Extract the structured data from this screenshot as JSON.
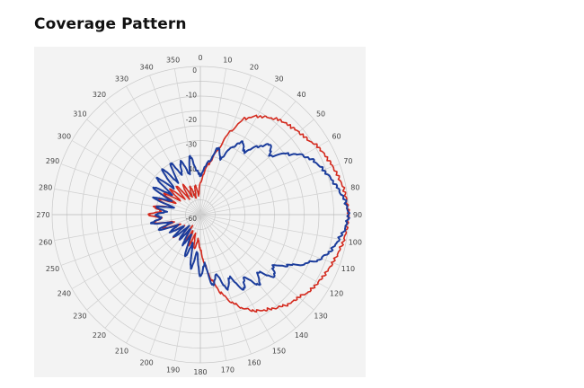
{
  "page": {
    "title": "Coverage Pattern"
  },
  "chart_data": {
    "type": "polar",
    "title": "Coverage Pattern",
    "angle_unit": "degrees",
    "angle_direction": "clockwise",
    "angle_zero": "top",
    "angular_ticks": [
      "0",
      "10",
      "20",
      "30",
      "40",
      "50",
      "60",
      "70",
      "80",
      "90",
      "100",
      "110",
      "120",
      "130",
      "140",
      "150",
      "160",
      "170",
      "180",
      "190",
      "200",
      "210",
      "220",
      "230",
      "240",
      "250",
      "260",
      "270",
      "280",
      "290",
      "300",
      "310",
      "320",
      "330",
      "340",
      "350"
    ],
    "radial_ticks": [
      "0",
      "-10",
      "-20",
      "-30",
      "-40",
      "-50",
      "-60"
    ],
    "radial_range": [
      -60,
      0
    ],
    "grid": true,
    "series": [
      {
        "color": "#d42a1e",
        "points": [
          [
            0,
            -47
          ],
          [
            10,
            -39
          ],
          [
            15,
            -33
          ],
          [
            20,
            -24
          ],
          [
            25,
            -17
          ],
          [
            30,
            -14
          ],
          [
            35,
            -12
          ],
          [
            40,
            -10
          ],
          [
            45,
            -9
          ],
          [
            50,
            -8
          ],
          [
            55,
            -7
          ],
          [
            60,
            -5
          ],
          [
            65,
            -4
          ],
          [
            70,
            -3
          ],
          [
            75,
            -2
          ],
          [
            80,
            -1
          ],
          [
            85,
            -0.5
          ],
          [
            90,
            0
          ],
          [
            95,
            -0.5
          ],
          [
            100,
            -1
          ],
          [
            105,
            -2
          ],
          [
            110,
            -3
          ],
          [
            115,
            -4
          ],
          [
            120,
            -5
          ],
          [
            125,
            -6
          ],
          [
            130,
            -8
          ],
          [
            135,
            -9
          ],
          [
            140,
            -11
          ],
          [
            145,
            -13
          ],
          [
            150,
            -15
          ],
          [
            155,
            -18
          ],
          [
            160,
            -22
          ],
          [
            165,
            -27
          ],
          [
            170,
            -33
          ],
          [
            175,
            -40
          ],
          [
            180,
            -46
          ],
          [
            185,
            -50
          ],
          [
            190,
            -46
          ],
          [
            195,
            -52
          ],
          [
            200,
            -47
          ],
          [
            205,
            -53
          ],
          [
            210,
            -48
          ],
          [
            215,
            -54
          ],
          [
            220,
            -47
          ],
          [
            225,
            -53
          ],
          [
            230,
            -46
          ],
          [
            235,
            -52
          ],
          [
            240,
            -46
          ],
          [
            245,
            -51
          ],
          [
            250,
            -44
          ],
          [
            255,
            -49
          ],
          [
            260,
            -41
          ],
          [
            265,
            -44
          ],
          [
            270,
            -39
          ],
          [
            275,
            -44
          ],
          [
            280,
            -41
          ],
          [
            285,
            -48
          ],
          [
            290,
            -42
          ],
          [
            295,
            -49
          ],
          [
            300,
            -43
          ],
          [
            305,
            -50
          ],
          [
            310,
            -44
          ],
          [
            315,
            -51
          ],
          [
            320,
            -45
          ],
          [
            325,
            -52
          ],
          [
            330,
            -46
          ],
          [
            335,
            -52
          ],
          [
            340,
            -48
          ],
          [
            345,
            -53
          ],
          [
            350,
            -48
          ],
          [
            355,
            -52
          ]
        ]
      },
      {
        "color": "#1c3d9c",
        "points": [
          [
            0,
            -44
          ],
          [
            10,
            -38
          ],
          [
            15,
            -32
          ],
          [
            20,
            -36
          ],
          [
            25,
            -30
          ],
          [
            30,
            -26
          ],
          [
            35,
            -29
          ],
          [
            40,
            -24
          ],
          [
            45,
            -20
          ],
          [
            50,
            -23
          ],
          [
            55,
            -17
          ],
          [
            60,
            -12
          ],
          [
            65,
            -9
          ],
          [
            70,
            -7
          ],
          [
            75,
            -5
          ],
          [
            80,
            -3
          ],
          [
            85,
            -1
          ],
          [
            90,
            0
          ],
          [
            95,
            -1
          ],
          [
            100,
            -3
          ],
          [
            105,
            -5
          ],
          [
            110,
            -8
          ],
          [
            115,
            -13
          ],
          [
            120,
            -19
          ],
          [
            125,
            -24
          ],
          [
            130,
            -21
          ],
          [
            135,
            -27
          ],
          [
            140,
            -23
          ],
          [
            145,
            -29
          ],
          [
            150,
            -25
          ],
          [
            155,
            -32
          ],
          [
            160,
            -28
          ],
          [
            165,
            -35
          ],
          [
            170,
            -31
          ],
          [
            175,
            -40
          ],
          [
            180,
            -35
          ],
          [
            185,
            -45
          ],
          [
            190,
            -38
          ],
          [
            195,
            -48
          ],
          [
            200,
            -42
          ],
          [
            205,
            -51
          ],
          [
            210,
            -46
          ],
          [
            215,
            -53
          ],
          [
            220,
            -47
          ],
          [
            225,
            -53
          ],
          [
            230,
            -46
          ],
          [
            235,
            -52
          ],
          [
            240,
            -46
          ],
          [
            245,
            -50
          ],
          [
            250,
            -42
          ],
          [
            255,
            -48
          ],
          [
            260,
            -40
          ],
          [
            265,
            -44
          ],
          [
            270,
            -42
          ],
          [
            275,
            -46
          ],
          [
            280,
            -42
          ],
          [
            285,
            -49
          ],
          [
            290,
            -40
          ],
          [
            295,
            -47
          ],
          [
            300,
            -38
          ],
          [
            305,
            -46
          ],
          [
            310,
            -37
          ],
          [
            315,
            -45
          ],
          [
            320,
            -36
          ],
          [
            325,
            -44
          ],
          [
            330,
            -36
          ],
          [
            335,
            -42
          ],
          [
            340,
            -37
          ],
          [
            345,
            -43
          ],
          [
            350,
            -36
          ],
          [
            355,
            -42
          ]
        ]
      }
    ]
  }
}
